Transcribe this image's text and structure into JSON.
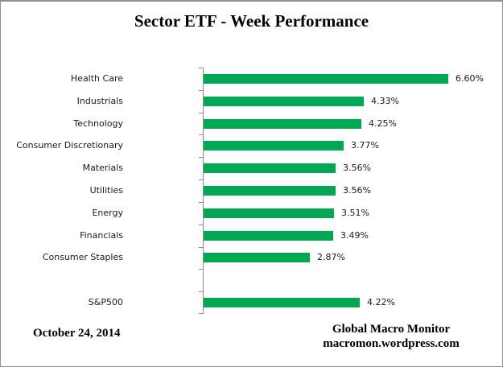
{
  "title": "Sector ETF - Week Performance",
  "footer": {
    "date": "October 24, 2014",
    "source_name": "Global Macro Monitor",
    "source_url": "macromon.wordpress.com"
  },
  "colors": {
    "bar": "#00A853",
    "axis": "#8C8C8C",
    "text": "#000000"
  },
  "chart_data": {
    "type": "bar",
    "orientation": "horizontal",
    "title": "Sector ETF - Week Performance",
    "categories": [
      "Health Care",
      "Industrials",
      "Technology",
      "Consumer Discretionary",
      "Materials",
      "Utilities",
      "Energy",
      "Financials",
      "Consumer Staples",
      "",
      "S&P500"
    ],
    "values": [
      6.6,
      4.33,
      4.25,
      3.77,
      3.56,
      3.56,
      3.51,
      3.49,
      2.87,
      null,
      4.22
    ],
    "value_labels": [
      "6.60%",
      "4.33%",
      "4.25%",
      "3.77%",
      "3.56%",
      "3.56%",
      "3.51%",
      "3.49%",
      "2.87%",
      "",
      "4.22%"
    ],
    "xlabel": "",
    "ylabel": "",
    "x_axis_tick_labels_visible": false,
    "gridlines": false,
    "legend": "none",
    "data_labels_position": "outside-end"
  }
}
